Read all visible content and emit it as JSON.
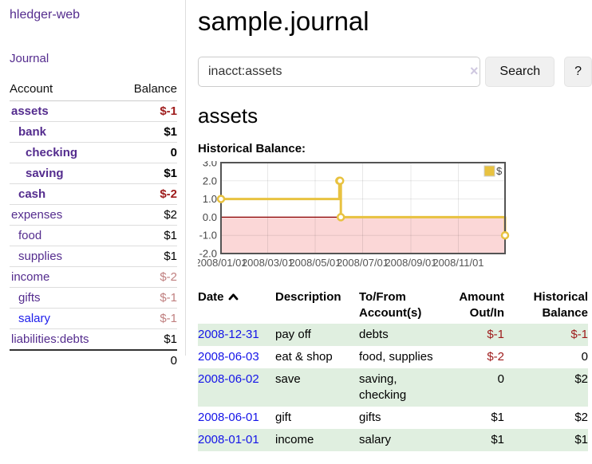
{
  "colors": {
    "accent_purple": "#542c8e",
    "link_blue": "#1414e8",
    "negative_strong": "#9e1b1b",
    "negative_dim": "#c08080",
    "row_green": "#e0efe0",
    "chart_line": "#e8c240",
    "chart_negative_fill": "#fbd7d7",
    "chart_zero_line": "#8b0000",
    "chart_border": "#545454"
  },
  "sidebar": {
    "brand": "hledger-web",
    "journal_label": "Journal",
    "accounts_table": {
      "headers": {
        "account": "Account",
        "balance": "Balance"
      },
      "rows": [
        {
          "name": "assets",
          "depth": 0,
          "bold": true,
          "balance": "$-1",
          "balance_class": "neg"
        },
        {
          "name": "bank",
          "depth": 1,
          "bold": true,
          "balance": "$1",
          "balance_class": ""
        },
        {
          "name": "checking",
          "depth": 2,
          "bold": true,
          "balance": "0",
          "balance_class": ""
        },
        {
          "name": "saving",
          "depth": 2,
          "bold": true,
          "balance": "$1",
          "balance_class": ""
        },
        {
          "name": "cash",
          "depth": 1,
          "bold": true,
          "balance": "$-2",
          "balance_class": "neg"
        },
        {
          "name": "expenses",
          "depth": 0,
          "bold": false,
          "balance": "$2",
          "balance_class": ""
        },
        {
          "name": "food",
          "depth": 1,
          "bold": false,
          "balance": "$1",
          "balance_class": ""
        },
        {
          "name": "supplies",
          "depth": 1,
          "bold": false,
          "balance": "$1",
          "balance_class": ""
        },
        {
          "name": "income",
          "depth": 0,
          "bold": false,
          "balance": "$-2",
          "balance_class": "neg-dim"
        },
        {
          "name": "gifts",
          "depth": 1,
          "bold": false,
          "balance": "$-1",
          "balance_class": "neg-dim"
        },
        {
          "name": "salary",
          "depth": 1,
          "bold": false,
          "balance": "$-1",
          "balance_class": "neg-dim",
          "link_color": "blue"
        },
        {
          "name": "liabilities:debts",
          "depth": 0,
          "bold": false,
          "balance": "$1",
          "balance_class": ""
        }
      ],
      "total": "0"
    }
  },
  "header": {
    "title": "sample.journal"
  },
  "search": {
    "value": "inacct:assets",
    "clear_icon": "×",
    "search_label": "Search",
    "help_label": "?"
  },
  "account_page": {
    "title": "assets",
    "chart_label": "Historical Balance:"
  },
  "chart_data": {
    "type": "line",
    "title": "Historical Balance",
    "steps": true,
    "series": [
      {
        "name": "$",
        "points": [
          [
            "2008-01-01",
            1
          ],
          [
            "2008-06-01",
            2
          ],
          [
            "2008-06-02",
            2
          ],
          [
            "2008-06-03",
            0
          ],
          [
            "2008-12-31",
            -1
          ]
        ]
      }
    ],
    "xrange": [
      "2008-01-01",
      "2008-12-31"
    ],
    "ylim": [
      -2,
      3
    ],
    "yticks": [
      "3.0",
      "2.0",
      "1.0",
      "0.0",
      "-1.0",
      "-2.0"
    ],
    "xticks": [
      "2008/01/01",
      "2008/03/01",
      "2008/05/01",
      "2008/07/01",
      "2008/09/01",
      "2008/11/01"
    ],
    "legend": "$",
    "legend_position": "top-right",
    "grid": true,
    "negative_region_shaded": true
  },
  "register": {
    "headers": [
      "Date",
      "Description",
      "To/From Account(s)",
      "Amount Out/In",
      "Historical Balance"
    ],
    "rows": [
      {
        "date": "2008-12-31",
        "description": "pay off",
        "accounts": "debts",
        "amount": "$-1",
        "amount_neg": true,
        "balance": "$-1",
        "balance_neg": true
      },
      {
        "date": "2008-06-03",
        "description": "eat & shop",
        "accounts": "food, supplies",
        "amount": "$-2",
        "amount_neg": true,
        "balance": "0",
        "balance_neg": false
      },
      {
        "date": "2008-06-02",
        "description": "save",
        "accounts": "saving, checking",
        "amount": "0",
        "amount_neg": false,
        "balance": "$2",
        "balance_neg": false
      },
      {
        "date": "2008-06-01",
        "description": "gift",
        "accounts": "gifts",
        "amount": "$1",
        "amount_neg": false,
        "balance": "$2",
        "balance_neg": false
      },
      {
        "date": "2008-01-01",
        "description": "income",
        "accounts": "salary",
        "amount": "$1",
        "amount_neg": false,
        "balance": "$1",
        "balance_neg": false
      }
    ]
  }
}
